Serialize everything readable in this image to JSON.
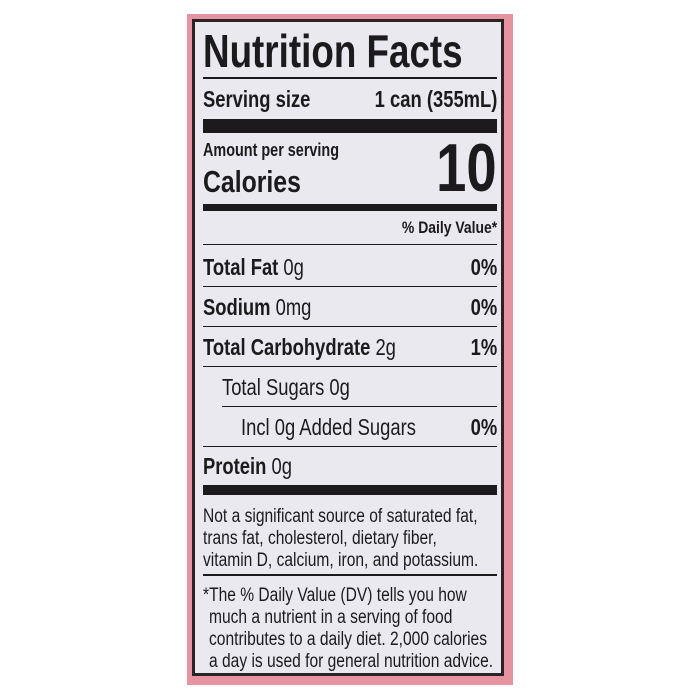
{
  "label": {
    "title": "Nutrition Facts",
    "serving_size_label": "Serving size",
    "serving_size_value": "1 can (355mL)",
    "amount_per_serving": "Amount per serving",
    "calories_label": "Calories",
    "calories_value": "10",
    "daily_value_header": "% Daily Value*",
    "nutrients": [
      {
        "name": "Total Fat",
        "amount": "0g",
        "dv": "0%"
      },
      {
        "name": "Sodium",
        "amount": "0mg",
        "dv": "0%"
      },
      {
        "name": "Total Carbohydrate",
        "amount": "2g",
        "dv": "1%"
      },
      {
        "name": "Total Sugars 0g",
        "amount": "",
        "dv": ""
      },
      {
        "name": "Incl 0g Added Sugars",
        "amount": "",
        "dv": "0%"
      },
      {
        "name": "Protein",
        "amount": "0g",
        "dv": ""
      }
    ],
    "not_significant": [
      "Not a significant source of saturated fat,",
      "trans fat, cholesterol, dietary fiber,",
      "vitamin D, calcium, iron, and potassium."
    ],
    "footnote": [
      "*The % Daily Value (DV) tells you how",
      "much a nutrient in a serving of food",
      "contributes to a daily diet. 2,000 calories",
      "a day is used for general nutrition advice."
    ]
  },
  "colors": {
    "border": "#e5939f",
    "panel": "#e9e9ef",
    "ink": "#1c1a1c"
  }
}
